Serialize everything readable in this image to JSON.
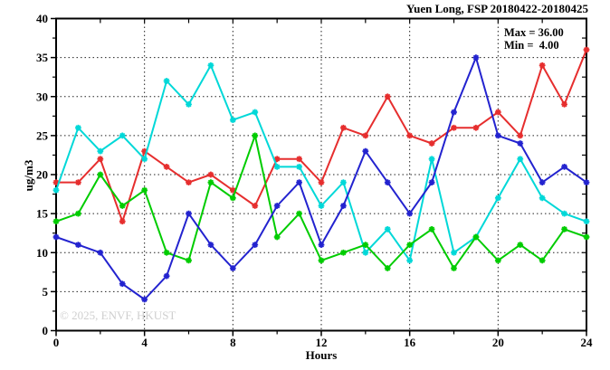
{
  "header": {
    "title": "Yuen Long, FSP 20180422-20180425"
  },
  "annotations": {
    "max_label": "Max = 36.00",
    "min_label": "Min =  4.00",
    "watermark": "© 2025, ENVF, HKUST"
  },
  "axes": {
    "xlabel": "Hours",
    "ylabel": "ug/m3"
  },
  "chart_data": {
    "type": "line",
    "title": "Yuen Long, FSP 20180422-20180425",
    "xlabel": "Hours",
    "ylabel": "ug/m3",
    "xlim": [
      0,
      24
    ],
    "ylim": [
      0,
      40
    ],
    "grid": true,
    "xticks_major": [
      0,
      4,
      8,
      12,
      16,
      20,
      24
    ],
    "xticks_minor": [
      2,
      6,
      10,
      14,
      18,
      22
    ],
    "yticks_major": [
      0,
      5,
      10,
      15,
      20,
      25,
      30,
      35,
      40
    ],
    "yticks_minor": [
      2.5,
      7.5,
      12.5,
      17.5,
      22.5,
      27.5,
      32.5,
      37.5
    ],
    "grid_x": [
      4,
      8,
      12,
      16,
      20
    ],
    "grid_y": [
      5,
      10,
      15,
      20,
      25,
      30,
      35
    ],
    "x": [
      0,
      1,
      2,
      3,
      4,
      5,
      6,
      7,
      8,
      9,
      10,
      11,
      12,
      13,
      14,
      15,
      16,
      17,
      18,
      19,
      20,
      21,
      22,
      23,
      24
    ],
    "max_value": 36.0,
    "min_value": 4.0,
    "series": [
      {
        "name": "series-red",
        "color": "#e62e2e",
        "values": [
          19,
          19,
          22,
          14,
          23,
          21,
          19,
          20,
          18,
          16,
          22,
          22,
          19,
          26,
          25,
          30,
          25,
          24,
          26,
          26,
          28,
          25,
          34,
          29,
          36
        ]
      },
      {
        "name": "series-cyan",
        "color": "#00d8d8",
        "values": [
          18,
          26,
          23,
          25,
          22,
          32,
          29,
          34,
          27,
          28,
          21,
          21,
          16,
          19,
          10,
          13,
          9,
          22,
          10,
          12,
          17,
          22,
          17,
          15,
          14
        ]
      },
      {
        "name": "series-green",
        "color": "#00cc00",
        "values": [
          14,
          15,
          20,
          16,
          18,
          10,
          9,
          19,
          17,
          25,
          12,
          15,
          9,
          10,
          11,
          8,
          11,
          13,
          8,
          12,
          9,
          11,
          9,
          13,
          12
        ]
      },
      {
        "name": "series-blue",
        "color": "#2323cf",
        "values": [
          12,
          11,
          10,
          6,
          4,
          7,
          15,
          11,
          8,
          11,
          16,
          19,
          11,
          16,
          23,
          19,
          15,
          19,
          28,
          35,
          25,
          24,
          19,
          21,
          19
        ]
      }
    ]
  }
}
